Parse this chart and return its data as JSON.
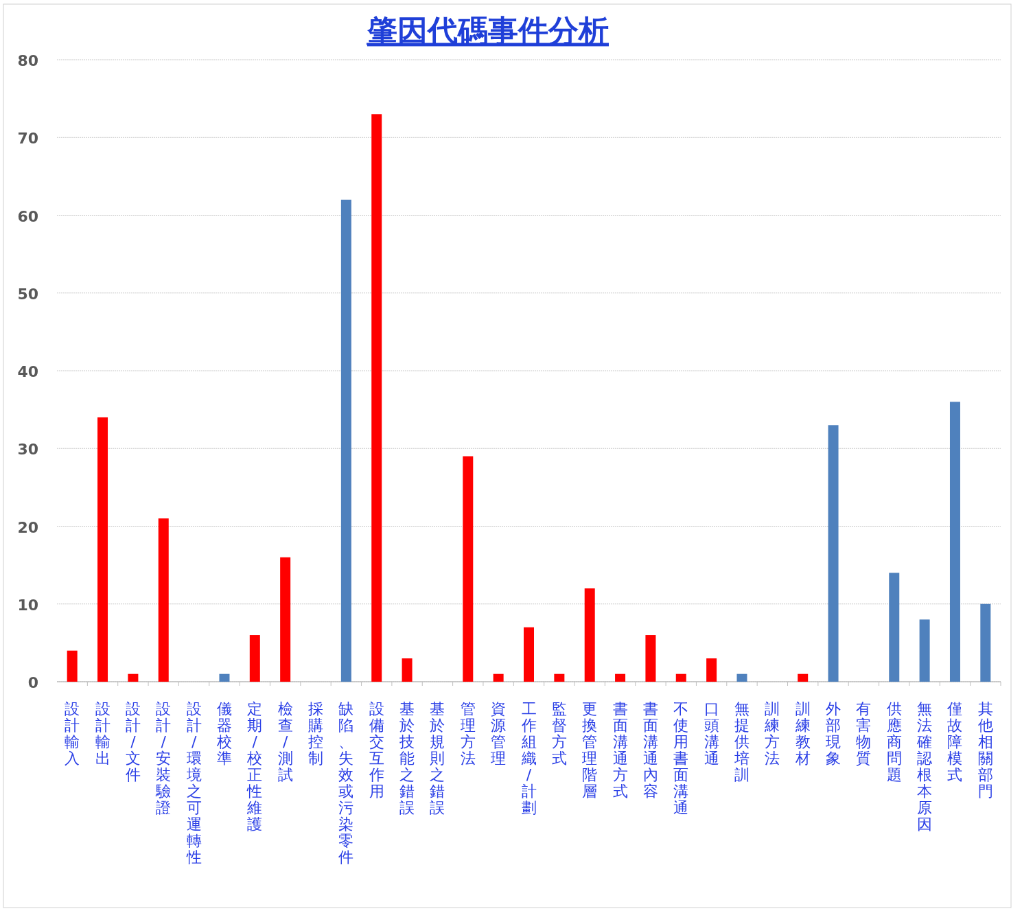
{
  "chart_data": {
    "type": "bar",
    "title": "肇因代碼事件分析",
    "categories": [
      "設計輸入",
      "設計輸出",
      "設計/文件",
      "設計/安裝驗證",
      "設計/環境之可運轉性",
      "儀器校準",
      "定期/校正性維護",
      "檢查/測試",
      "採購控制",
      "缺陷、失效或污染零件",
      "設備交互作用",
      "基於技能之錯誤",
      "基於規則之錯誤",
      "管理方法",
      "資源管理",
      "工作組織/計劃",
      "監督方式",
      "更換管理階層",
      "書面溝通方式",
      "書面溝通內容",
      "不使用書面溝通",
      "口頭溝通",
      "無提供培訓",
      "訓練方法",
      "訓練教材",
      "外部現象",
      "有害物質",
      "供應商問題",
      "無法確認根本原因",
      "僅故障模式",
      "其他相關部門"
    ],
    "values": [
      4,
      34,
      1,
      21,
      0,
      1,
      6,
      16,
      0,
      62,
      73,
      3,
      0,
      29,
      1,
      7,
      1,
      12,
      1,
      6,
      1,
      3,
      1,
      0,
      1,
      33,
      0,
      14,
      8,
      36,
      10
    ],
    "colors": [
      "#ff0000",
      "#ff0000",
      "#ff0000",
      "#ff0000",
      "#ff0000",
      "#4f81bd",
      "#ff0000",
      "#ff0000",
      "#ff0000",
      "#4f81bd",
      "#ff0000",
      "#ff0000",
      "#ff0000",
      "#ff0000",
      "#ff0000",
      "#ff0000",
      "#ff0000",
      "#ff0000",
      "#ff0000",
      "#ff0000",
      "#ff0000",
      "#ff0000",
      "#4f81bd",
      "#ff0000",
      "#ff0000",
      "#4f81bd",
      "#4f81bd",
      "#4f81bd",
      "#4f81bd",
      "#4f81bd",
      "#4f81bd"
    ],
    "ylim": [
      0,
      80
    ],
    "yticks": [
      0,
      10,
      20,
      30,
      40,
      50,
      60,
      70,
      80
    ],
    "grid": "y"
  }
}
